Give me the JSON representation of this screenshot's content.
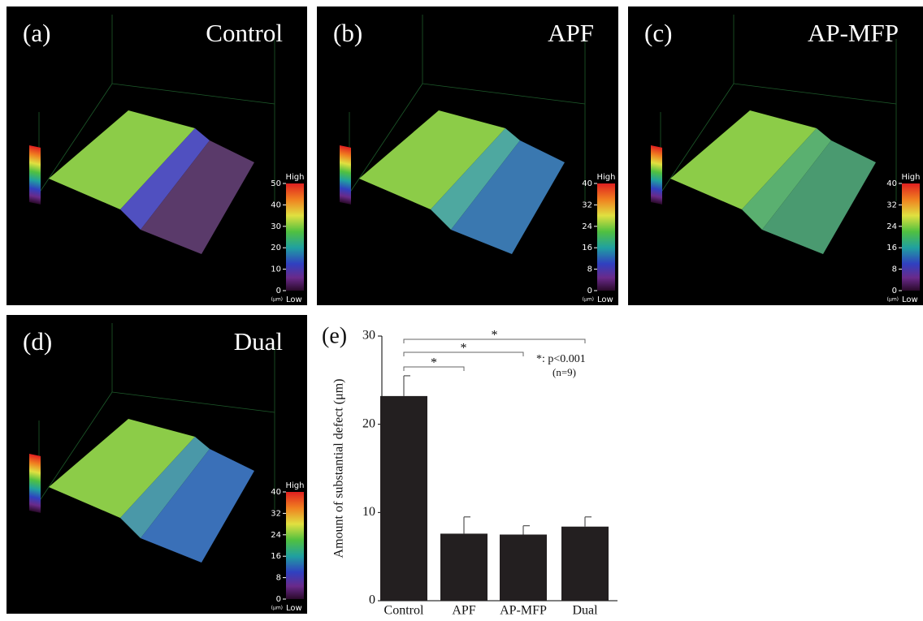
{
  "panels": [
    {
      "label": "(a)",
      "title": "Control",
      "colorbar": {
        "high": "High",
        "low": "Low",
        "unit": "(μm)",
        "ticks": [
          0,
          10,
          20,
          30,
          40,
          50
        ]
      }
    },
    {
      "label": "(b)",
      "title": "APF",
      "colorbar": {
        "high": "High",
        "low": "Low",
        "unit": "(μm)",
        "ticks": [
          0,
          8,
          16,
          24,
          32,
          40
        ]
      }
    },
    {
      "label": "(c)",
      "title": "AP-MFP",
      "colorbar": {
        "high": "High",
        "low": "Low",
        "unit": "(μm)",
        "ticks": [
          0,
          8,
          16,
          24,
          32,
          40
        ]
      }
    },
    {
      "label": "(d)",
      "title": "Dual",
      "colorbar": {
        "high": "High",
        "low": "Low",
        "unit": "(μm)",
        "ticks": [
          0,
          8,
          16,
          24,
          32,
          40
        ]
      }
    }
  ],
  "chart_data": {
    "type": "bar",
    "panel_label": "(e)",
    "ylabel": "Amount of substantial defect (μm)",
    "categories": [
      "Control",
      "APF",
      "AP-MFP",
      "Dual"
    ],
    "values": [
      23.2,
      7.6,
      7.5,
      8.4
    ],
    "errors": [
      2.3,
      1.9,
      1.0,
      1.1
    ],
    "color": "#231f20",
    "ylim": [
      0,
      30
    ],
    "yticks": [
      0,
      10,
      20,
      30
    ],
    "significance": [
      {
        "from": 0,
        "to": 1,
        "label": "*"
      },
      {
        "from": 0,
        "to": 2,
        "label": "*"
      },
      {
        "from": 0,
        "to": 3,
        "label": "*"
      }
    ],
    "note": "*: p<0.001",
    "n": "(n=9)"
  }
}
